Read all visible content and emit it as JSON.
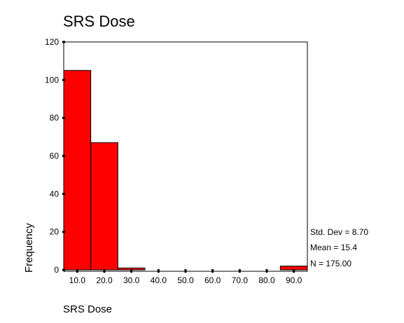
{
  "chart_data": {
    "type": "bar",
    "title": "SRS Dose",
    "xlabel": "SRS Dose",
    "ylabel": "Frequency",
    "ylim": [
      0,
      120
    ],
    "yticks": [
      "0",
      "20",
      "40",
      "60",
      "80",
      "100",
      "120"
    ],
    "xticks": [
      "10.0",
      "20.0",
      "30.0",
      "40.0",
      "50.0",
      "60.0",
      "70.0",
      "80.0",
      "90.0"
    ],
    "bins": [
      {
        "center": 10,
        "count": 105
      },
      {
        "center": 20,
        "count": 67
      },
      {
        "center": 30,
        "count": 1
      },
      {
        "center": 90,
        "count": 2
      }
    ],
    "bin_width": 10,
    "stats": {
      "std_dev": "Std. Dev = 8.70",
      "mean": "Mean = 15.4",
      "n": "N = 175.00"
    },
    "colors": {
      "bar": "#ff0000",
      "bar_stroke": "#000000"
    },
    "grid": false
  }
}
